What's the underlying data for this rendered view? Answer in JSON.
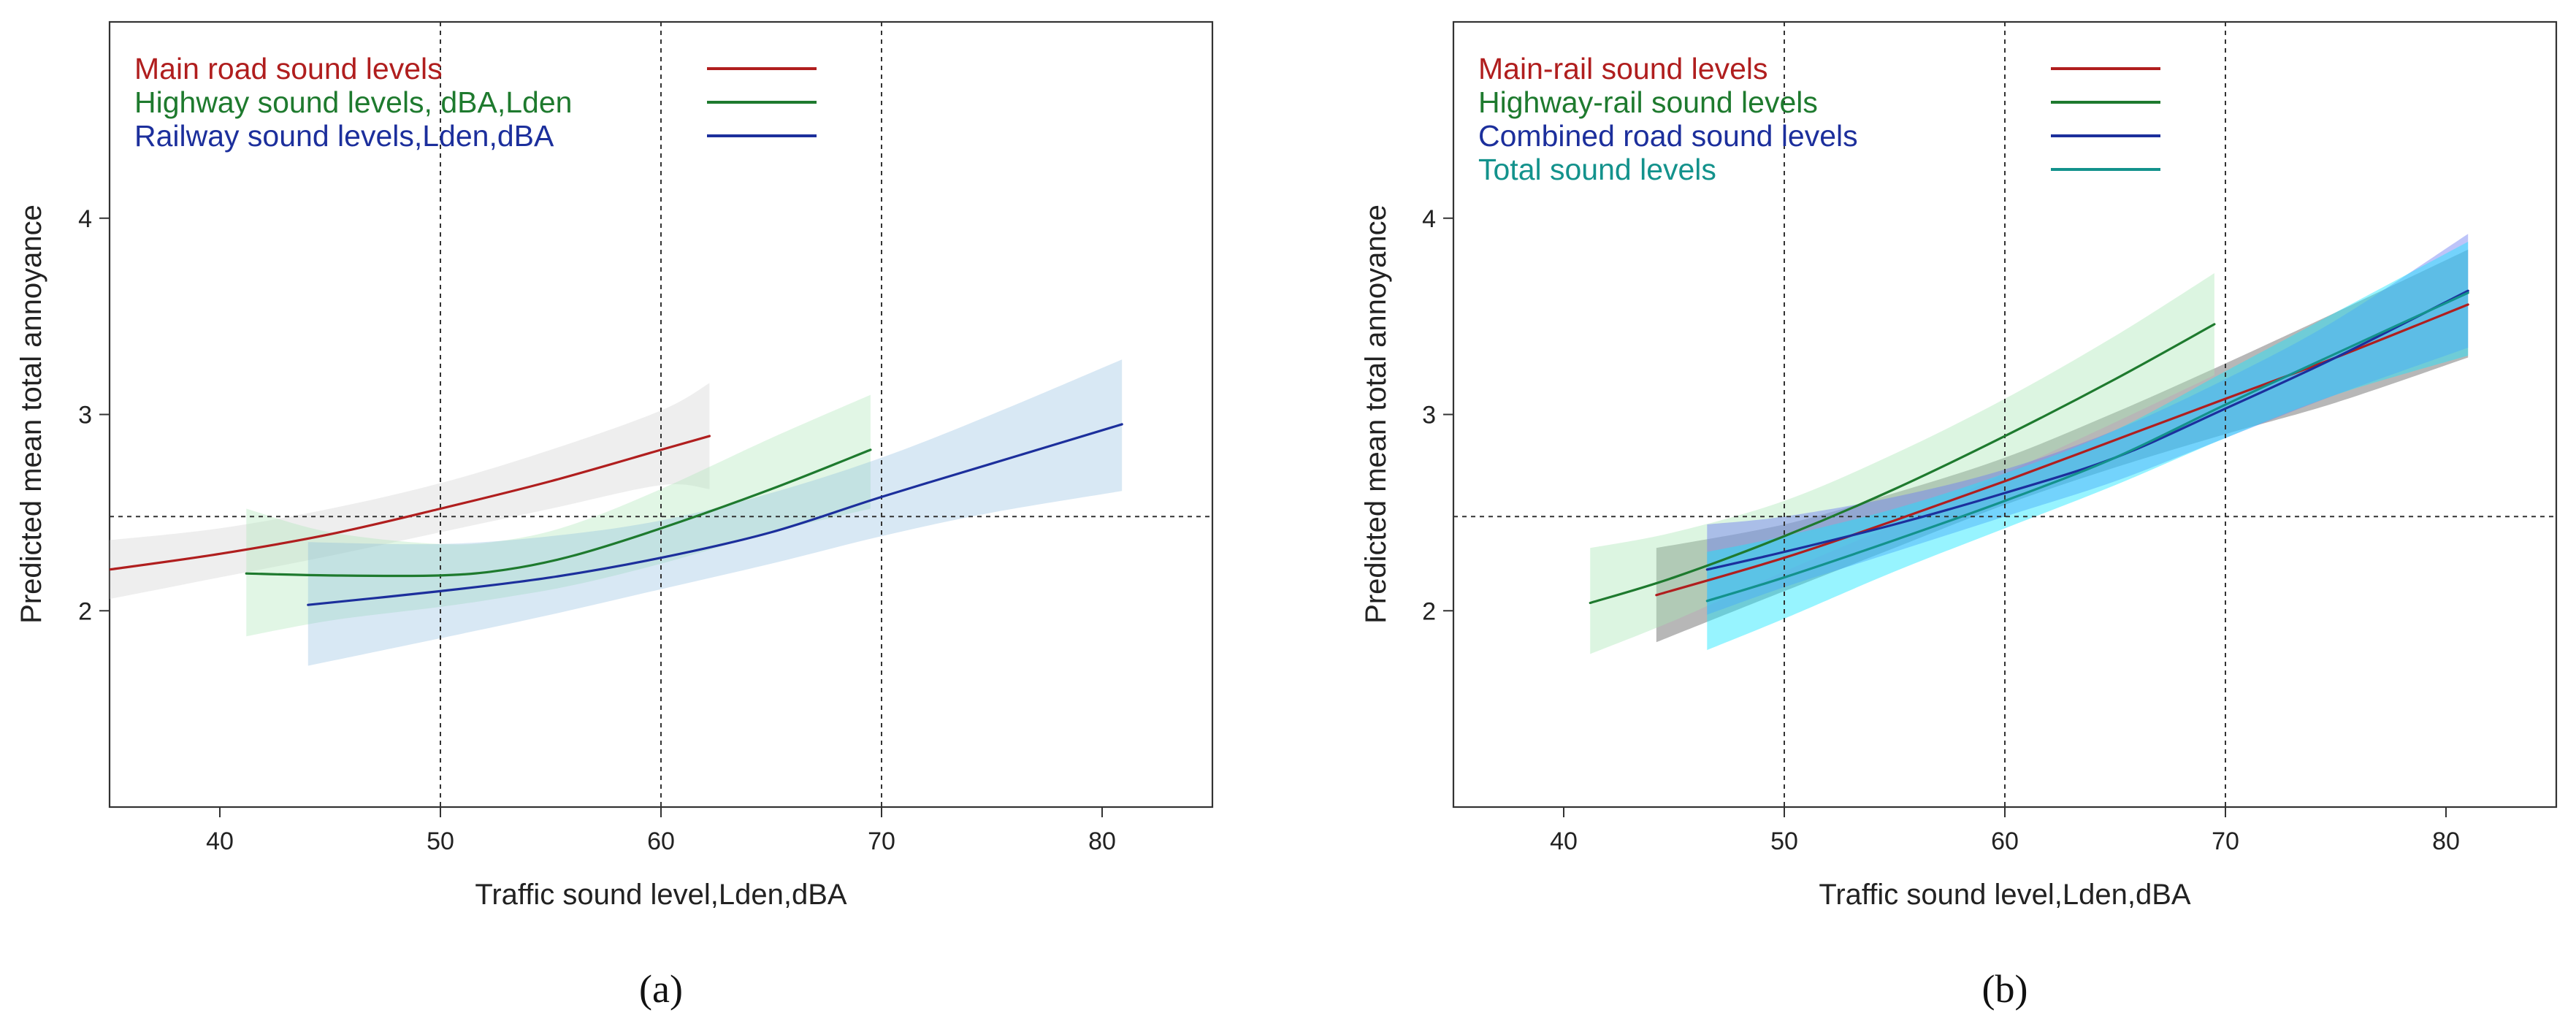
{
  "chart_data": [
    {
      "panel": "a",
      "type": "line",
      "caption": "(a)",
      "xlabel": "Traffic sound level,Lden,dBA",
      "ylabel": "Predicted mean total annoyance",
      "xlim": [
        35,
        85
      ],
      "ylim": [
        1,
        5
      ],
      "xticks": [
        40,
        50,
        60,
        70,
        80
      ],
      "yticks": [
        2,
        3,
        4
      ],
      "vlines": [
        50,
        60,
        70
      ],
      "hline": 2.48,
      "legend_position": "top-left",
      "series": [
        {
          "name": "Main road sound levels",
          "color": "#b01e1e",
          "band_color": "#cfcfcf",
          "band_opacity": 0.35,
          "x": [
            35,
            40,
            45,
            50,
            55,
            60,
            62.2
          ],
          "y": [
            2.21,
            2.29,
            2.39,
            2.52,
            2.66,
            2.82,
            2.89
          ],
          "lower": [
            2.06,
            2.17,
            2.28,
            2.4,
            2.52,
            2.64,
            2.62
          ],
          "upper": [
            2.36,
            2.42,
            2.52,
            2.65,
            2.82,
            3.02,
            3.16
          ]
        },
        {
          "name": "Highway sound levels, dBA,Lden",
          "color": "#1e7a2e",
          "band_color": "#a8e6b4",
          "band_opacity": 0.35,
          "x": [
            41.2,
            45,
            50,
            53,
            56,
            60,
            65,
            69.5
          ],
          "y": [
            2.19,
            2.18,
            2.18,
            2.21,
            2.28,
            2.42,
            2.62,
            2.82
          ],
          "lower": [
            1.87,
            1.95,
            2.02,
            2.07,
            2.13,
            2.24,
            2.4,
            2.52
          ],
          "upper": [
            2.52,
            2.4,
            2.34,
            2.36,
            2.44,
            2.62,
            2.88,
            3.1
          ]
        },
        {
          "name": "Railway sound levels,Lden,dBA",
          "color": "#1c2f9c",
          "band_color": "#7fb2da",
          "band_opacity": 0.3,
          "x": [
            44,
            50,
            55,
            60,
            65,
            70,
            75,
            80.9
          ],
          "y": [
            2.03,
            2.1,
            2.17,
            2.27,
            2.4,
            2.58,
            2.75,
            2.95
          ],
          "lower": [
            1.72,
            1.86,
            1.98,
            2.11,
            2.24,
            2.38,
            2.5,
            2.61
          ],
          "upper": [
            2.35,
            2.34,
            2.38,
            2.46,
            2.6,
            2.78,
            3.0,
            3.28
          ]
        }
      ]
    },
    {
      "panel": "b",
      "type": "line",
      "caption": "(b)",
      "xlabel": "Traffic sound level,Lden,dBA",
      "ylabel": "Predicted mean total annoyance",
      "xlim": [
        35,
        85
      ],
      "ylim": [
        1,
        5
      ],
      "xticks": [
        40,
        50,
        60,
        70,
        80
      ],
      "yticks": [
        2,
        3,
        4
      ],
      "vlines": [
        50,
        60,
        70
      ],
      "hline": 2.48,
      "legend_position": "top-left",
      "series": [
        {
          "name": "Main-rail sound levels",
          "color": "#b01e1e",
          "band_color": "#707070",
          "band_opacity": 0.5,
          "x": [
            44.2,
            50,
            55,
            60,
            65,
            70,
            75,
            81
          ],
          "y": [
            2.08,
            2.27,
            2.46,
            2.66,
            2.87,
            3.08,
            3.29,
            3.56
          ],
          "lower": [
            1.84,
            2.1,
            2.32,
            2.54,
            2.73,
            2.9,
            3.06,
            3.29
          ],
          "upper": [
            2.32,
            2.44,
            2.6,
            2.78,
            3.01,
            3.26,
            3.52,
            3.84
          ]
        },
        {
          "name": "Highway-rail sound levels",
          "color": "#1e7a2e",
          "band_color": "#a8e6b4",
          "band_opacity": 0.4,
          "x": [
            41.2,
            45,
            50,
            55,
            60,
            65,
            69.5
          ],
          "y": [
            2.04,
            2.17,
            2.38,
            2.62,
            2.89,
            3.18,
            3.46
          ],
          "lower": [
            1.78,
            1.95,
            2.2,
            2.44,
            2.7,
            2.96,
            3.2
          ],
          "upper": [
            2.32,
            2.4,
            2.56,
            2.8,
            3.08,
            3.4,
            3.72
          ]
        },
        {
          "name": "Combined road sound levels",
          "color": "#1c2f9c",
          "band_color": "#6d7cf2",
          "band_opacity": 0.45,
          "x": [
            46.5,
            50,
            55,
            60,
            65,
            70,
            75,
            81
          ],
          "y": [
            2.21,
            2.3,
            2.44,
            2.6,
            2.78,
            3.03,
            3.29,
            3.63
          ],
          "lower": [
            1.98,
            2.12,
            2.3,
            2.48,
            2.66,
            2.88,
            3.1,
            3.34
          ],
          "upper": [
            2.44,
            2.48,
            2.58,
            2.72,
            2.92,
            3.18,
            3.48,
            3.92
          ]
        },
        {
          "name": "Total sound levels",
          "color": "#13928c",
          "band_color": "#18e6ff",
          "band_opacity": 0.45,
          "x": [
            46.5,
            50,
            55,
            60,
            65,
            70,
            75,
            81
          ],
          "y": [
            2.05,
            2.17,
            2.36,
            2.56,
            2.78,
            3.05,
            3.31,
            3.62
          ],
          "lower": [
            1.8,
            1.96,
            2.2,
            2.42,
            2.64,
            2.88,
            3.1,
            3.3
          ],
          "upper": [
            2.3,
            2.38,
            2.52,
            2.7,
            2.92,
            3.22,
            3.52,
            3.88
          ]
        }
      ]
    }
  ]
}
